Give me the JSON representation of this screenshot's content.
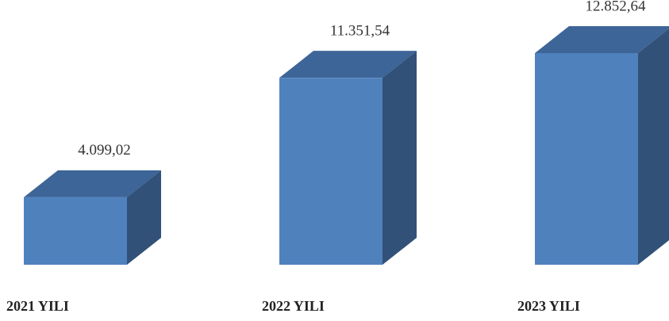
{
  "chart_data": {
    "type": "bar3d",
    "categories": [
      "2021 YILI",
      "2022 YILI",
      "2023 YILI"
    ],
    "values": [
      4099.02,
      11351.54,
      12852.64
    ],
    "value_labels": [
      "4.099,02",
      "11.351,54",
      "12.852,64"
    ],
    "color": "#4f81bd"
  }
}
